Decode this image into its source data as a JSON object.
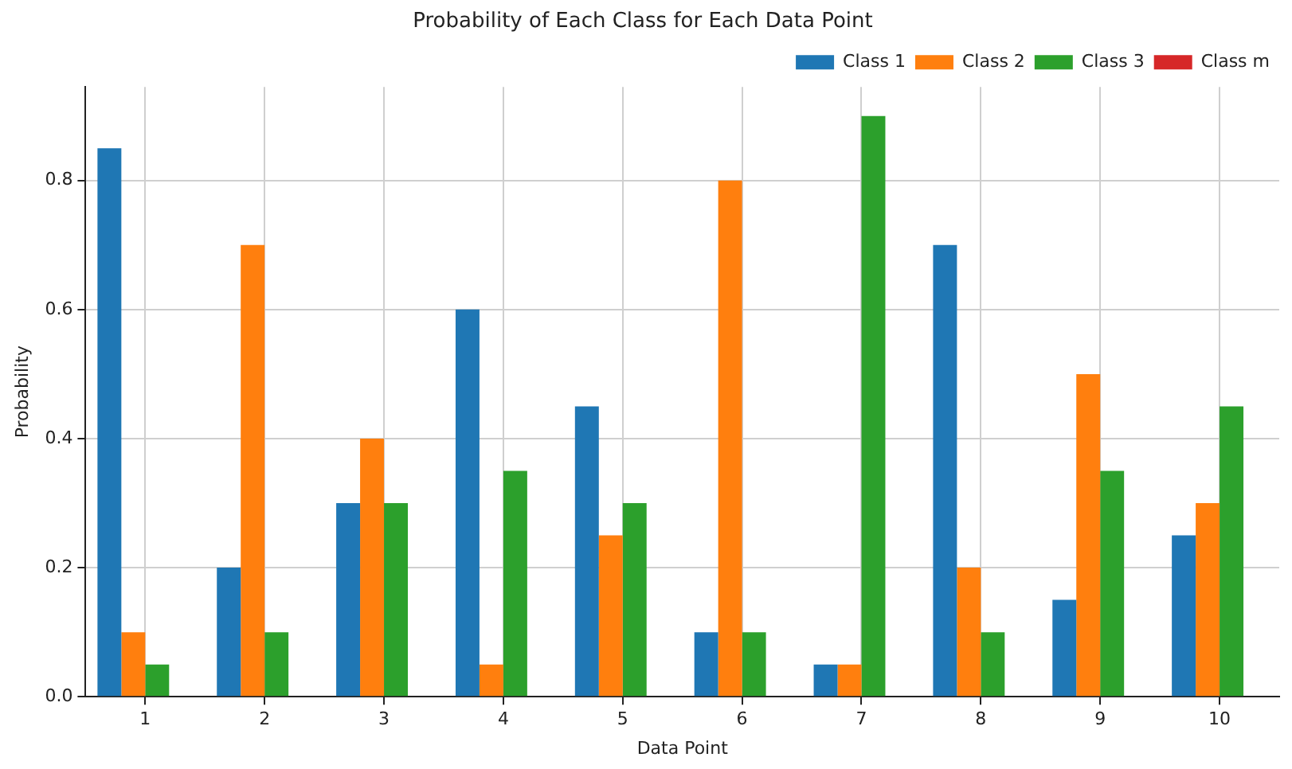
{
  "chart_data": {
    "type": "bar",
    "title": "Probability of Each Class for Each Data Point",
    "xlabel": "Data Point",
    "ylabel": "Probability",
    "categories": [
      "1",
      "2",
      "3",
      "4",
      "5",
      "6",
      "7",
      "8",
      "9",
      "10"
    ],
    "series": [
      {
        "name": "Class 1",
        "color": "#1f77b4",
        "values": [
          0.85,
          0.2,
          0.3,
          0.6,
          0.45,
          0.1,
          0.05,
          0.7,
          0.15,
          0.25
        ]
      },
      {
        "name": "Class 2",
        "color": "#ff7f0e",
        "values": [
          0.1,
          0.7,
          0.4,
          0.05,
          0.25,
          0.8,
          0.05,
          0.2,
          0.5,
          0.3
        ]
      },
      {
        "name": "Class 3",
        "color": "#2ca02c",
        "values": [
          0.05,
          0.1,
          0.3,
          0.35,
          0.3,
          0.1,
          0.9,
          0.1,
          0.35,
          0.45
        ]
      },
      {
        "name": "Class m",
        "color": "#d62728",
        "values": [
          0,
          0,
          0,
          0,
          0,
          0,
          0,
          0,
          0,
          0
        ]
      }
    ],
    "ylim": [
      0,
      0.945
    ],
    "yticks": [
      {
        "value": 0,
        "label": "0.0"
      },
      {
        "value": 0.2,
        "label": "0.2"
      },
      {
        "value": 0.4,
        "label": "0.4"
      },
      {
        "value": 0.6,
        "label": "0.6"
      },
      {
        "value": 0.8,
        "label": "0.8"
      }
    ],
    "grid": true,
    "legend": "top right"
  }
}
